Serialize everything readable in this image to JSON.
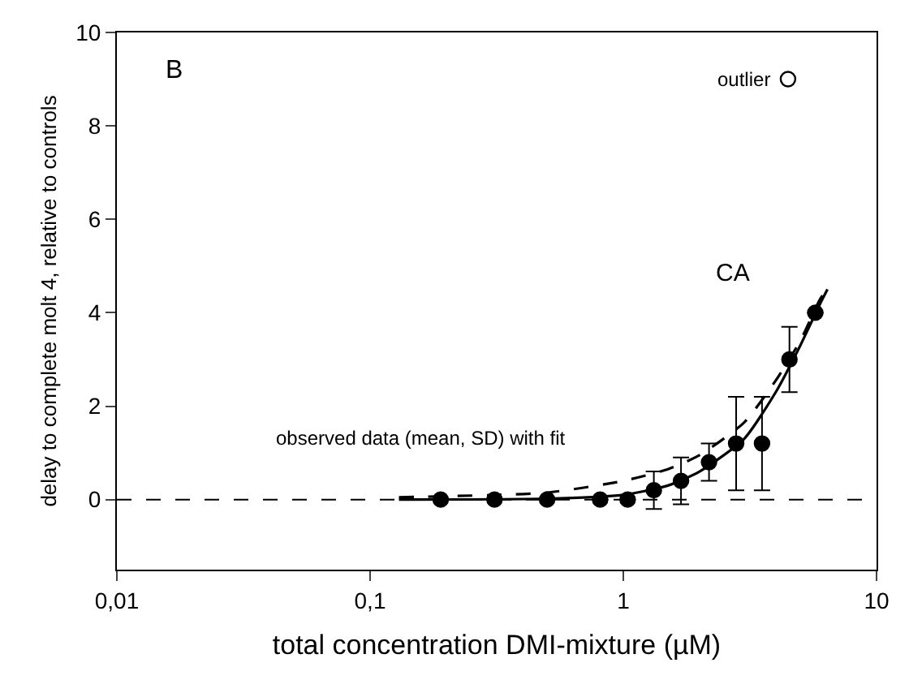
{
  "chart_data": {
    "type": "scatter",
    "xlabel": "total concentration DMI-mixture (µM)",
    "ylabel": "delay to complete molt 4, relative to controls",
    "log": "x",
    "xlim": [
      0.01,
      10
    ],
    "xticks": [
      {
        "value": 0.01,
        "label": "0,01"
      },
      {
        "value": 0.1,
        "label": "0,1"
      },
      1,
      10
    ],
    "ylim": [
      -1.5,
      10
    ],
    "yticks": [
      0,
      2,
      4,
      6,
      8,
      10
    ],
    "grid": false,
    "series": [
      {
        "type": "line",
        "color": "#000000",
        "line_style": "dashed",
        "marker": "none",
        "x": [
          0.13,
          0.5,
          1,
          1.5,
          2,
          3,
          4,
          5,
          6,
          6.4
        ],
        "values": [
          0.05,
          0.15,
          0.4,
          0.65,
          0.95,
          1.65,
          2.55,
          3.4,
          4.3,
          4.5
        ]
      },
      {
        "type": "line",
        "color": "#000000",
        "line_style": "solid",
        "marker": "none",
        "x": [
          0.13,
          0.5,
          1,
          1.5,
          2,
          3,
          4,
          5,
          6,
          6.4
        ],
        "values": [
          0,
          0.02,
          0.1,
          0.3,
          0.6,
          1.3,
          2.3,
          3.3,
          4.2,
          4.5
        ]
      },
      {
        "color": "#000000",
        "marker": "circle",
        "x": [
          0.19,
          0.31,
          0.5,
          0.81,
          1.04,
          1.32,
          1.69,
          2.18,
          2.79,
          3.53,
          4.53,
          5.73
        ],
        "values": [
          0,
          0,
          0,
          0,
          0,
          0.2,
          0.4,
          0.8,
          1.2,
          1.2,
          3.0,
          4.0
        ],
        "errors": [
          null,
          null,
          null,
          null,
          null,
          0.4,
          0.5,
          0.4,
          1.0,
          1.0,
          0.7,
          null
        ]
      },
      {
        "color": "#ffffff",
        "marker": "circle",
        "x": [
          4.47
        ],
        "values": [
          9.0
        ]
      }
    ],
    "ref_lines": [
      {
        "axis": "y",
        "value": 0,
        "line_style": "dashed",
        "color": "#000000"
      }
    ],
    "annotations": [
      "B",
      {
        "text": "outlier",
        "x": 4.47,
        "y": 9.0
      },
      "CA",
      "observed data (mean, SD) with fit"
    ]
  }
}
